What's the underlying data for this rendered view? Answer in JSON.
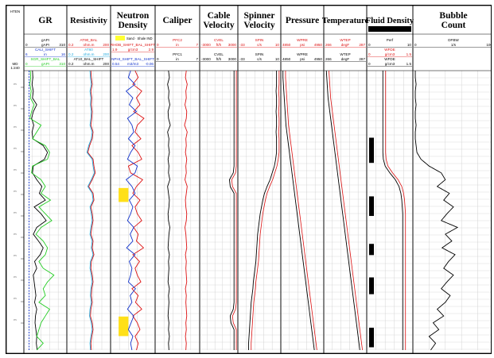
{
  "colors": {
    "grid": "#c8c8c8",
    "black": "#000000",
    "green": "#22cc22",
    "red": "#dd1111",
    "blue": "#1133cc",
    "cyan": "#22aadd",
    "yellow": "#ffdd00",
    "sand_box": "#ffff33"
  },
  "left_panel": {
    "labels": [
      "HTEN",
      "MD",
      "1:240"
    ],
    "depth_unit": "m"
  },
  "tracks": [
    {
      "id": "gr",
      "title": [
        "GR"
      ],
      "curves": [
        {
          "mnemonic": "gAPI",
          "unit": "gAPI",
          "min": "0",
          "max": "310",
          "color": "black"
        },
        {
          "mnemonic": "CALI_SHIFT",
          "unit": "in",
          "min": "6",
          "max": "16",
          "color": "blue"
        },
        {
          "mnemonic": "SGR_SHIFT_BAL",
          "unit": "gAPI",
          "min": "0",
          "max": "310",
          "color": "green"
        }
      ]
    },
    {
      "id": "resistivity",
      "title": [
        "Resistivity"
      ],
      "curves": [
        {
          "mnemonic": "AT90_BAL",
          "unit": "ohm.m",
          "min": "0.2",
          "max": "200",
          "color": "red"
        },
        {
          "mnemonic": "AT60",
          "unit": "ohm.m",
          "min": "0.2",
          "max": "200",
          "color": "cyan"
        },
        {
          "mnemonic": "AT10_BAL_SHIFT",
          "unit": "ohm.m",
          "min": "0.2",
          "max": "200",
          "color": "black"
        }
      ]
    },
    {
      "id": "neutron_density",
      "title": [
        "Neutron",
        "Density"
      ],
      "fill_label": "Sand · Shale IND",
      "curves": [
        {
          "mnemonic": "RHOB_SHIFT_BAL_SHIFT",
          "unit": "g/cm3",
          "min": "1.9",
          "max": "2.9",
          "color": "red"
        },
        {
          "mnemonic": "NPHI_SHIFT_BAL_SHIFT",
          "unit": "m3/m3",
          "min": "0.54",
          "max": "-0.06",
          "color": "blue"
        }
      ]
    },
    {
      "id": "caliper",
      "title": [
        "Caliper"
      ],
      "curves": [
        {
          "mnemonic": "PFC2",
          "unit": "in",
          "min": "0",
          "max": "7",
          "color": "red"
        },
        {
          "mnemonic": "PFC1",
          "unit": "in",
          "min": "0",
          "max": "7",
          "color": "black"
        }
      ]
    },
    {
      "id": "cable_velocity",
      "title": [
        "Cable",
        "Velocity"
      ],
      "curves": [
        {
          "mnemonic": "CVEL",
          "unit": "ft/h",
          "min": "-3000",
          "max": "3000",
          "color": "red"
        },
        {
          "mnemonic": "CVEL",
          "unit": "ft/h",
          "min": "-3000",
          "max": "3000",
          "color": "black"
        }
      ]
    },
    {
      "id": "spinner_velocity",
      "title": [
        "Spinner",
        "Velocity"
      ],
      "curves": [
        {
          "mnemonic": "SPIN",
          "unit": "c/s",
          "min": "-33",
          "max": "10",
          "color": "red"
        },
        {
          "mnemonic": "SPIN",
          "unit": "c/s",
          "min": "-33",
          "max": "10",
          "color": "black"
        }
      ]
    },
    {
      "id": "pressure",
      "title": [
        "Pressure"
      ],
      "curves": [
        {
          "mnemonic": "WPRE",
          "unit": "psi",
          "min": "4850",
          "max": "4950",
          "color": "red"
        },
        {
          "mnemonic": "WPRE",
          "unit": "psi",
          "min": "4850",
          "max": "4950",
          "color": "black"
        }
      ]
    },
    {
      "id": "temperature",
      "title": [
        "Temperature"
      ],
      "curves": [
        {
          "mnemonic": "WTEP",
          "unit": "degF",
          "min": "266",
          "max": "287",
          "color": "red"
        },
        {
          "mnemonic": "WTEP",
          "unit": "degF",
          "min": "266",
          "max": "287",
          "color": "black"
        }
      ]
    },
    {
      "id": "fluid_density",
      "title": [
        "Fluid Density"
      ],
      "curves": [
        {
          "mnemonic": "Perf",
          "unit": "",
          "min": "0",
          "max": "10",
          "color": "black"
        },
        {
          "mnemonic": "WFDE",
          "unit": "g/cm3",
          "min": "0",
          "max": "1.5",
          "color": "red"
        },
        {
          "mnemonic": "WFDE",
          "unit": "g/cm3",
          "min": "0",
          "max": "1.5",
          "color": "black"
        }
      ]
    },
    {
      "id": "bubble_count",
      "title": [
        "Bubble",
        "Count"
      ],
      "curves": [
        {
          "mnemonic": "DFBW",
          "unit": "1/s",
          "min": "0",
          "max": "100",
          "color": "black"
        }
      ]
    }
  ],
  "chart_data": {
    "type": "line",
    "kind": "well-log",
    "title": "",
    "xlabel": "",
    "ylabel": "MD",
    "depth_scale": "1:240",
    "grid": true,
    "legend": "track headers",
    "series": [
      {
        "name": "gAPI",
        "track": "gr",
        "color": "black",
        "values": [
          0.2,
          0.21,
          0.19,
          0.22,
          0.2,
          0.3,
          0.22,
          0.18,
          0.23,
          0.19,
          0.21,
          0.45,
          0.55,
          0.48,
          0.22,
          0.2,
          0.3,
          0.42,
          0.36,
          0.5,
          0.24,
          0.4,
          0.52,
          0.3,
          0.22,
          0.34,
          0.45,
          0.38,
          0.25,
          0.3,
          0.22,
          0.24,
          0.26,
          0.28,
          0.25,
          0.3,
          0.27,
          0.26,
          0.28,
          0.3,
          0.29,
          0.31
        ]
      },
      {
        "name": "SGR_SHIFT_BAL",
        "track": "gr",
        "color": "green",
        "values": [
          0.15,
          0.16,
          0.14,
          0.17,
          0.15,
          0.24,
          0.18,
          0.14,
          0.4,
          0.3,
          0.2,
          0.5,
          0.6,
          0.55,
          0.2,
          0.18,
          0.4,
          0.5,
          0.4,
          0.62,
          0.35,
          0.5,
          0.65,
          0.4,
          0.28,
          0.45,
          0.55,
          0.5,
          0.35,
          0.45,
          0.7,
          0.55,
          0.45,
          0.5,
          0.35,
          0.6,
          0.5,
          0.4,
          0.35,
          0.3,
          0.45,
          0.3
        ]
      },
      {
        "name": "CALI_SHIFT",
        "track": "gr",
        "color": "blue",
        "values": [
          0.12,
          0.12,
          0.12,
          0.12,
          0.12,
          0.12,
          0.12,
          0.12,
          0.12,
          0.12,
          0.12,
          0.12,
          0.12,
          0.12,
          0.12,
          0.12,
          0.12,
          0.12,
          0.12,
          0.12,
          0.12,
          0.12,
          0.12,
          0.12,
          0.12,
          0.12,
          0.12,
          0.12,
          0.12,
          0.12,
          0.12,
          0.12,
          0.12,
          0.12,
          0.12,
          0.12,
          0.12,
          0.12,
          0.12,
          0.12,
          0.12,
          0.12
        ]
      },
      {
        "name": "AT90_BAL",
        "track": "resistivity",
        "color": "red",
        "values": [
          0.55,
          0.56,
          0.58,
          0.55,
          0.57,
          0.56,
          0.58,
          0.57,
          0.55,
          0.6,
          0.58,
          0.52,
          0.48,
          0.6,
          0.62,
          0.65,
          0.58,
          0.5,
          0.6,
          0.62,
          0.55,
          0.58,
          0.6,
          0.57,
          0.55,
          0.6,
          0.58,
          0.62,
          0.56,
          0.55,
          0.58,
          0.6,
          0.57,
          0.56,
          0.58,
          0.55,
          0.54,
          0.58,
          0.6,
          0.57,
          0.55,
          0.56
        ]
      },
      {
        "name": "AT60",
        "track": "resistivity",
        "color": "cyan",
        "values": [
          0.53,
          0.54,
          0.56,
          0.53,
          0.55,
          0.54,
          0.56,
          0.55,
          0.53,
          0.58,
          0.56,
          0.5,
          0.46,
          0.58,
          0.6,
          0.63,
          0.56,
          0.48,
          0.58,
          0.6,
          0.53,
          0.56,
          0.58,
          0.55,
          0.53,
          0.58,
          0.56,
          0.6,
          0.54,
          0.53,
          0.56,
          0.58,
          0.55,
          0.54,
          0.56,
          0.53,
          0.52,
          0.56,
          0.58,
          0.55,
          0.53,
          0.54
        ]
      },
      {
        "name": "RHOB_SHIFT_BAL_SHIFT",
        "track": "neutron_density",
        "color": "red",
        "values": [
          0.55,
          0.62,
          0.5,
          0.7,
          0.58,
          0.66,
          0.52,
          0.75,
          0.6,
          0.55,
          0.68,
          0.48,
          0.62,
          0.7,
          0.4,
          0.45,
          0.72,
          0.58,
          0.5,
          0.66,
          0.55,
          0.6,
          0.7,
          0.52,
          0.62,
          0.58,
          0.74,
          0.5,
          0.65,
          0.55,
          0.6,
          0.68,
          0.48,
          0.62,
          0.56,
          0.7,
          0.5,
          0.6,
          0.66,
          0.55,
          0.62,
          0.58
        ]
      },
      {
        "name": "NPHI_SHIFT_BAL_SHIFT",
        "track": "neutron_density",
        "color": "blue",
        "values": [
          0.45,
          0.4,
          0.55,
          0.35,
          0.5,
          0.42,
          0.58,
          0.38,
          0.48,
          0.52,
          0.4,
          0.55,
          0.45,
          0.38,
          0.6,
          0.55,
          0.35,
          0.48,
          0.55,
          0.42,
          0.5,
          0.45,
          0.38,
          0.52,
          0.44,
          0.5,
          0.36,
          0.55,
          0.42,
          0.48,
          0.45,
          0.4,
          0.56,
          0.44,
          0.48,
          0.38,
          0.52,
          0.46,
          0.4,
          0.5,
          0.45,
          0.48
        ]
      },
      {
        "name": "PFC1",
        "track": "caliper",
        "color": "black",
        "values": [
          0.3,
          0.32,
          0.28,
          0.31,
          0.3,
          0.33,
          0.29,
          0.3,
          0.34,
          0.28,
          0.31,
          0.3,
          0.32,
          0.29,
          0.31,
          0.3,
          0.33,
          0.28,
          0.3,
          0.32,
          0.31,
          0.29,
          0.3,
          0.33,
          0.31,
          0.3,
          0.29,
          0.32,
          0.3,
          0.31,
          0.3,
          0.29,
          0.32,
          0.3,
          0.31,
          0.3,
          0.29,
          0.31,
          0.3,
          0.32,
          0.3,
          0.31
        ]
      },
      {
        "name": "PFC2",
        "track": "caliper",
        "color": "red",
        "values": [
          0.7,
          0.68,
          0.72,
          0.69,
          0.7,
          0.67,
          0.71,
          0.7,
          0.66,
          0.72,
          0.69,
          0.7,
          0.68,
          0.71,
          0.69,
          0.7,
          0.67,
          0.72,
          0.7,
          0.68,
          0.69,
          0.71,
          0.7,
          0.67,
          0.69,
          0.7,
          0.71,
          0.68,
          0.7,
          0.69,
          0.7,
          0.71,
          0.68,
          0.7,
          0.69,
          0.7,
          0.71,
          0.69,
          0.7,
          0.68,
          0.7,
          0.69
        ]
      },
      {
        "name": "CVEL",
        "track": "cable_velocity",
        "color": "black",
        "values": [
          0.9,
          0.9,
          0.9,
          0.9,
          0.9,
          0.9,
          0.9,
          0.9,
          0.9,
          0.9,
          0.9,
          0.9,
          0.9,
          0.9,
          0.9,
          0.88,
          0.78,
          0.8,
          0.9,
          0.9,
          0.9,
          0.9,
          0.9,
          0.9,
          0.9,
          0.9,
          0.9,
          0.9,
          0.9,
          0.9,
          0.9,
          0.9,
          0.9,
          0.9,
          0.9,
          0.88,
          0.8,
          0.82,
          0.9,
          0.9,
          0.9,
          0.9
        ]
      },
      {
        "name": "SPIN",
        "track": "spinner_velocity",
        "color": "black",
        "values": [
          0.9,
          0.9,
          0.9,
          0.89,
          0.9,
          0.9,
          0.89,
          0.9,
          0.9,
          0.89,
          0.9,
          0.9,
          0.9,
          0.88,
          0.85,
          0.8,
          0.75,
          0.68,
          0.62,
          0.58,
          0.55,
          0.52,
          0.5,
          0.48,
          0.46,
          0.45,
          0.44,
          0.43,
          0.42,
          0.4,
          0.38,
          0.36,
          0.35,
          0.33,
          0.31,
          0.3,
          0.29,
          0.28,
          0.27,
          0.26,
          0.25,
          0.25
        ]
      },
      {
        "name": "WPRE",
        "track": "pressure",
        "color": "black",
        "values": [
          0.05,
          0.05,
          0.06,
          0.07,
          0.08,
          0.09,
          0.1,
          0.11,
          0.12,
          0.14,
          0.16,
          0.18,
          0.2,
          0.22,
          0.24,
          0.26,
          0.28,
          0.3,
          0.32,
          0.34,
          0.36,
          0.38,
          0.4,
          0.42,
          0.44,
          0.46,
          0.48,
          0.5,
          0.52,
          0.54,
          0.56,
          0.58,
          0.6,
          0.62,
          0.64,
          0.66,
          0.68,
          0.7,
          0.72,
          0.74,
          0.76,
          0.78
        ]
      },
      {
        "name": "WTEP",
        "track": "temperature",
        "color": "black",
        "values": [
          0.06,
          0.07,
          0.08,
          0.09,
          0.1,
          0.12,
          0.14,
          0.16,
          0.18,
          0.2,
          0.22,
          0.24,
          0.26,
          0.28,
          0.3,
          0.32,
          0.34,
          0.36,
          0.38,
          0.4,
          0.42,
          0.44,
          0.46,
          0.48,
          0.5,
          0.52,
          0.54,
          0.56,
          0.58,
          0.6,
          0.62,
          0.64,
          0.66,
          0.68,
          0.7,
          0.72,
          0.74,
          0.76,
          0.78,
          0.8,
          0.82,
          0.84
        ]
      },
      {
        "name": "WFDE",
        "track": "fluid_density",
        "color": "black",
        "values": [
          0.35,
          0.35,
          0.35,
          0.35,
          0.35,
          0.35,
          0.35,
          0.35,
          0.35,
          0.35,
          0.35,
          0.35,
          0.35,
          0.36,
          0.4,
          0.5,
          0.62,
          0.7,
          0.74,
          0.76,
          0.77,
          0.78,
          0.78,
          0.78,
          0.78,
          0.78,
          0.78,
          0.78,
          0.78,
          0.78,
          0.78,
          0.78,
          0.78,
          0.78,
          0.78,
          0.78,
          0.78,
          0.78,
          0.78,
          0.78,
          0.78,
          0.78
        ]
      },
      {
        "name": "DFBW",
        "track": "bubble_count",
        "color": "black",
        "values": [
          0.03,
          0.03,
          0.04,
          0.03,
          0.03,
          0.04,
          0.03,
          0.03,
          0.04,
          0.03,
          0.03,
          0.04,
          0.05,
          0.1,
          0.2,
          0.35,
          0.4,
          0.3,
          0.45,
          0.38,
          0.5,
          0.42,
          0.35,
          0.55,
          0.4,
          0.48,
          0.36,
          0.52,
          0.44,
          0.38,
          0.5,
          0.42,
          0.35,
          0.46,
          0.4,
          0.3,
          0.38,
          0.25,
          0.32,
          0.2,
          0.28,
          0.22
        ]
      }
    ],
    "perf_intervals": [
      [
        0.24,
        0.33
      ],
      [
        0.45,
        0.52
      ],
      [
        0.62,
        0.66
      ],
      [
        0.74,
        0.8
      ],
      [
        0.92,
        0.99
      ]
    ],
    "neutron_density_yellow_fill": [
      [
        0.42,
        0.47
      ],
      [
        0.88,
        0.95
      ]
    ]
  }
}
